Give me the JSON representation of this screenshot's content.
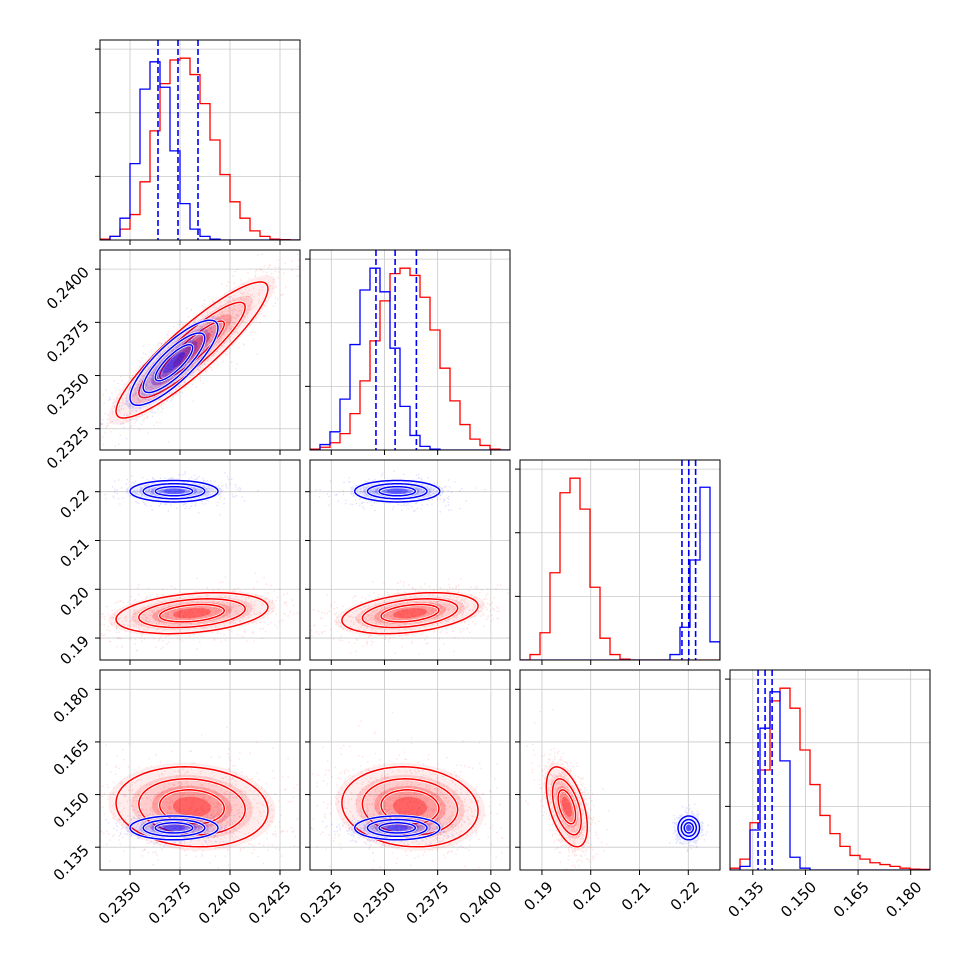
{
  "chart_data": {
    "type": "corner",
    "grid": true,
    "series_colors": {
      "red": "#ff0000",
      "blue": "#0000ff"
    },
    "params": [
      {
        "id": "p1",
        "range": [
          0.2335,
          0.2435
        ],
        "ticks": [
          0.235,
          0.2375,
          0.24,
          0.2425
        ],
        "tick_labels": [
          "0.2350",
          "0.2375",
          "0.2400",
          "0.2425"
        ]
      },
      {
        "id": "p2",
        "range": [
          0.2315,
          0.2409
        ],
        "ticks": [
          0.2325,
          0.235,
          0.2375,
          0.24
        ],
        "tick_labels": [
          "0.2325",
          "0.2350",
          "0.2375",
          "0.2400"
        ]
      },
      {
        "id": "p3",
        "range": [
          0.1855,
          0.2265
        ],
        "ticks": [
          0.19,
          0.2,
          0.21,
          0.22
        ],
        "tick_labels": [
          "0.19",
          "0.20",
          "0.21",
          "0.22"
        ]
      },
      {
        "id": "p4",
        "range": [
          0.1285,
          0.1855
        ],
        "ticks": [
          0.135,
          0.15,
          0.165,
          0.18
        ],
        "tick_labels": [
          "0.135",
          "0.150",
          "0.165",
          "0.180"
        ]
      }
    ],
    "histograms": [
      {
        "param": 0,
        "y_max": 1.1,
        "quantiles": [
          0.2364,
          0.2374,
          0.2384
        ],
        "red": {
          "edges": [
            0.2335,
            0.2435
          ],
          "values": [
            0.005,
            0.02,
            0.06,
            0.14,
            0.32,
            0.6,
            0.86,
            0.99,
            1.0,
            0.91,
            0.75,
            0.55,
            0.36,
            0.21,
            0.12,
            0.05,
            0.02,
            0.005,
            0.002,
            0.0
          ]
        },
        "blue": {
          "edges": [
            0.2335,
            0.2435
          ],
          "values": [
            0.0,
            0.02,
            0.12,
            0.42,
            0.83,
            0.98,
            0.84,
            0.49,
            0.2,
            0.06,
            0.02,
            0.005,
            0.0,
            0.0,
            0.0,
            0.0,
            0.0,
            0.0,
            0.0,
            0.0
          ]
        }
      },
      {
        "param": 1,
        "y_max": 1.1,
        "quantiles": [
          0.2346,
          0.2355,
          0.2365
        ],
        "red": {
          "edges": [
            0.2315,
            0.2409
          ],
          "values": [
            0.005,
            0.015,
            0.04,
            0.09,
            0.2,
            0.38,
            0.6,
            0.82,
            0.97,
            1.0,
            0.96,
            0.84,
            0.66,
            0.45,
            0.27,
            0.14,
            0.06,
            0.025,
            0.005,
            0.0
          ]
        },
        "blue": {
          "edges": [
            0.2315,
            0.2409
          ],
          "values": [
            0.0,
            0.03,
            0.1,
            0.28,
            0.58,
            0.88,
            1.0,
            0.87,
            0.56,
            0.24,
            0.08,
            0.02,
            0.005,
            0.0,
            0.0,
            0.0,
            0.0,
            0.0,
            0.0,
            0.0
          ]
        }
      },
      {
        "param": 2,
        "y_max": 1.1,
        "quantiles": [
          0.2187,
          0.2201,
          0.2215
        ],
        "red": {
          "edges": [
            0.1855,
            0.2265
          ],
          "values": [
            0.0,
            0.03,
            0.15,
            0.48,
            0.92,
            1.0,
            0.83,
            0.4,
            0.12,
            0.03,
            0.005,
            0.0,
            0.0,
            0.0,
            0.0,
            0.0,
            0.0,
            0.0,
            0.0,
            0.0
          ]
        },
        "blue": {
          "edges": [
            0.1855,
            0.2265
          ],
          "values": [
            0.0,
            0.0,
            0.0,
            0.0,
            0.0,
            0.0,
            0.0,
            0.0,
            0.0,
            0.0,
            0.0,
            0.0,
            0.0,
            0.0,
            0.0,
            0.03,
            0.18,
            0.55,
            0.95,
            0.1
          ]
        }
      },
      {
        "param": 3,
        "y_max": 1.1,
        "quantiles": [
          0.1365,
          0.1385,
          0.1405
        ],
        "red": {
          "edges": [
            0.1285,
            0.1855
          ],
          "values": [
            0.01,
            0.06,
            0.26,
            0.55,
            0.93,
            1.0,
            0.89,
            0.66,
            0.47,
            0.3,
            0.2,
            0.13,
            0.08,
            0.06,
            0.04,
            0.03,
            0.02,
            0.01,
            0.005,
            0.003
          ]
        },
        "blue": {
          "edges": [
            0.1285,
            0.1855
          ],
          "values": [
            0.0,
            0.02,
            0.22,
            0.78,
            0.98,
            0.6,
            0.07,
            0.01,
            0.0,
            0.0,
            0.0,
            0.0,
            0.0,
            0.0,
            0.0,
            0.0,
            0.0,
            0.0,
            0.0,
            0.0
          ]
        }
      }
    ],
    "contours_2d": [
      {
        "x_param": 0,
        "y_param": 1,
        "red": {
          "mean": [
            0.2381,
            0.2362
          ],
          "sd": [
            0.0019,
            0.0016
          ],
          "rho": 0.9
        },
        "blue": {
          "mean": [
            0.2372,
            0.2356
          ],
          "sd": [
            0.0011,
            0.001
          ],
          "rho": 0.82
        }
      },
      {
        "x_param": 0,
        "y_param": 2,
        "red": {
          "mean": [
            0.2381,
            0.1951
          ],
          "sd": [
            0.0019,
            0.0021
          ],
          "rho": 0.3
        },
        "blue": {
          "mean": [
            0.2372,
            0.2201
          ],
          "sd": [
            0.0011,
            0.0011
          ],
          "rho": 0.0
        }
      },
      {
        "x_param": 1,
        "y_param": 2,
        "red": {
          "mean": [
            0.2362,
            0.1951
          ],
          "sd": [
            0.0016,
            0.0021
          ],
          "rho": 0.35
        },
        "blue": {
          "mean": [
            0.2356,
            0.2201
          ],
          "sd": [
            0.001,
            0.0011
          ],
          "rho": 0.0
        }
      },
      {
        "x_param": 0,
        "y_param": 3,
        "red": {
          "mean": [
            0.2381,
            0.1465
          ],
          "sd": [
            0.0019,
            0.0057
          ],
          "rho": -0.1
        },
        "blue": {
          "mean": [
            0.2372,
            0.1405
          ],
          "sd": [
            0.0011,
            0.0017
          ],
          "rho": 0.0
        }
      },
      {
        "x_param": 1,
        "y_param": 3,
        "red": {
          "mean": [
            0.2362,
            0.1465
          ],
          "sd": [
            0.0016,
            0.0057
          ],
          "rho": -0.1
        },
        "blue": {
          "mean": [
            0.2356,
            0.1405
          ],
          "sd": [
            0.001,
            0.0017
          ],
          "rho": 0.0
        }
      },
      {
        "x_param": 2,
        "y_param": 3,
        "red": {
          "mean": [
            0.1951,
            0.1465
          ],
          "sd": [
            0.0021,
            0.0057
          ],
          "rho": -0.5
        },
        "blue": {
          "mean": [
            0.2201,
            0.1405
          ],
          "sd": [
            0.0011,
            0.0017
          ],
          "rho": 0.0
        }
      }
    ]
  }
}
